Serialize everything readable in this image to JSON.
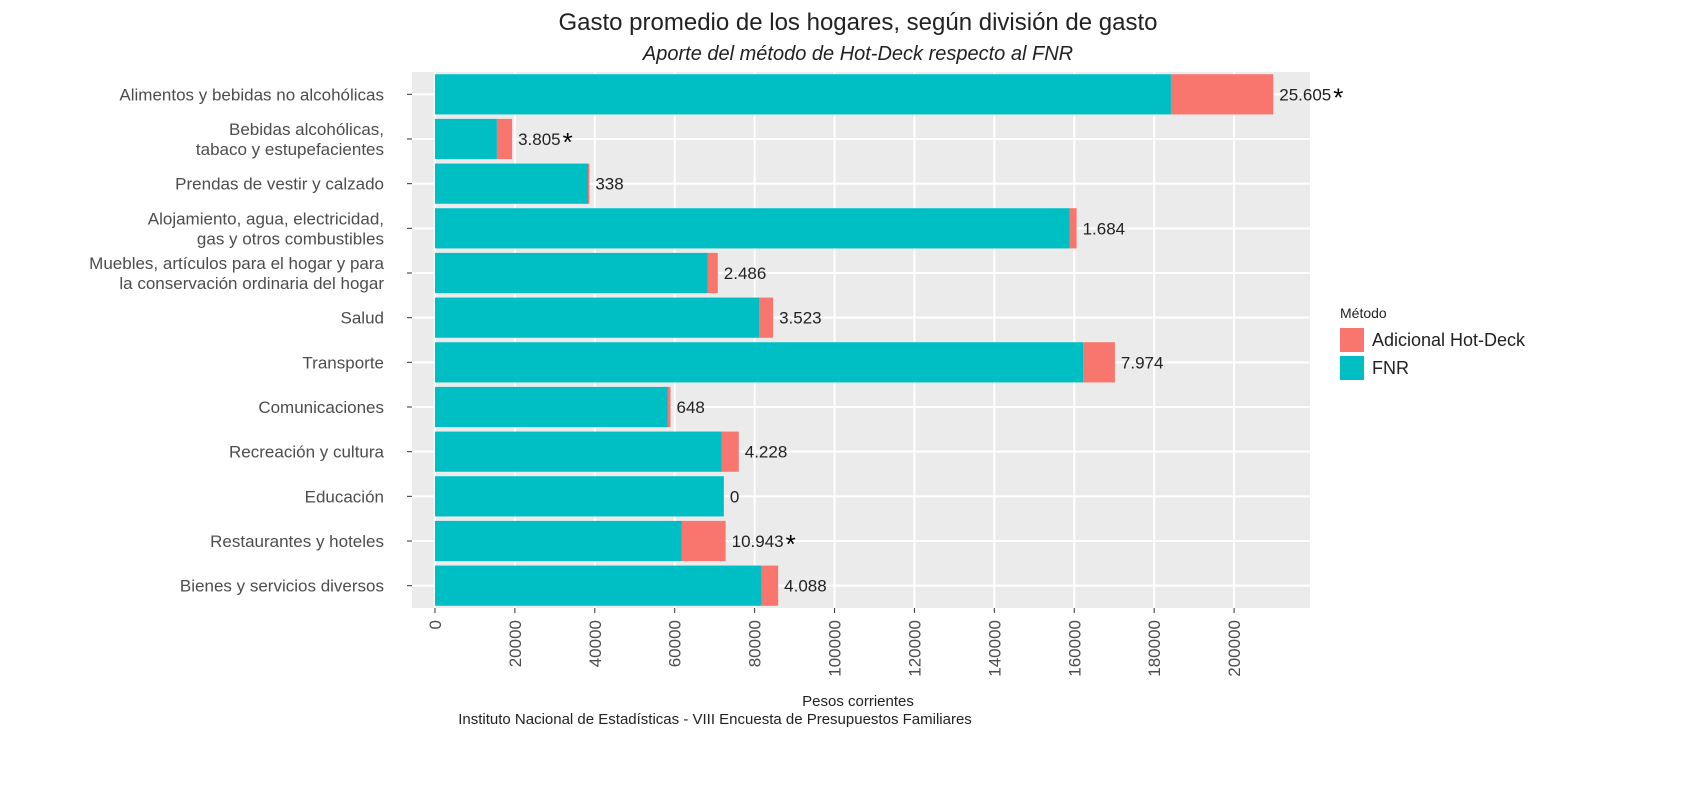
{
  "chart_data": {
    "type": "stacked-barh",
    "title": "Gasto promedio de los hogares, según división de gasto",
    "subtitle": "Aporte del método de Hot-Deck respecto al FNR",
    "categories": [
      "Alimentos y bebidas no alcohólicas",
      "Bebidas alcohólicas,\ntabaco y estupefacientes",
      "Prendas de vestir y calzado",
      "Alojamiento, agua, electricidad,\ngas y otros combustibles",
      "Muebles, artículos para el hogar y para\nla conservación ordinaria del hogar",
      "Salud",
      "Transporte",
      "Comunicaciones",
      "Recreación y cultura",
      "Educación",
      "Restaurantes y hoteles",
      "Bienes y servicios diversos"
    ],
    "series": [
      {
        "name": "FNR",
        "color": "#00BFC4",
        "values": [
          184200,
          15500,
          38300,
          158900,
          68300,
          81100,
          162200,
          58300,
          71800,
          72300,
          61800,
          81800
        ]
      },
      {
        "name": "Adicional Hot-Deck",
        "color": "#F8766D",
        "values": [
          25605,
          3805,
          338,
          1684,
          2486,
          3523,
          7974,
          648,
          4228,
          0,
          10943,
          4088
        ],
        "value_labels": [
          "25.605",
          "3.805",
          "338",
          "1.684",
          "2.486",
          "3.523",
          "7.974",
          "648",
          "4.228",
          "0",
          "10.943",
          "4.088"
        ],
        "markers": [
          "*",
          "*",
          null,
          null,
          null,
          null,
          null,
          null,
          null,
          null,
          "*",
          null
        ]
      }
    ],
    "legend_title": "Método",
    "legend_order": [
      1,
      0
    ],
    "legend": "right",
    "xlabel": "Pesos corrientes",
    "caption": "Instituto Nacional de Estadísticas - VIII Encuesta de Presupuestos Familiares",
    "xlim": [
      -5750,
      219000
    ],
    "xticks": [
      0,
      20000,
      40000,
      60000,
      80000,
      100000,
      120000,
      140000,
      160000,
      180000,
      200000
    ],
    "grid": true
  }
}
